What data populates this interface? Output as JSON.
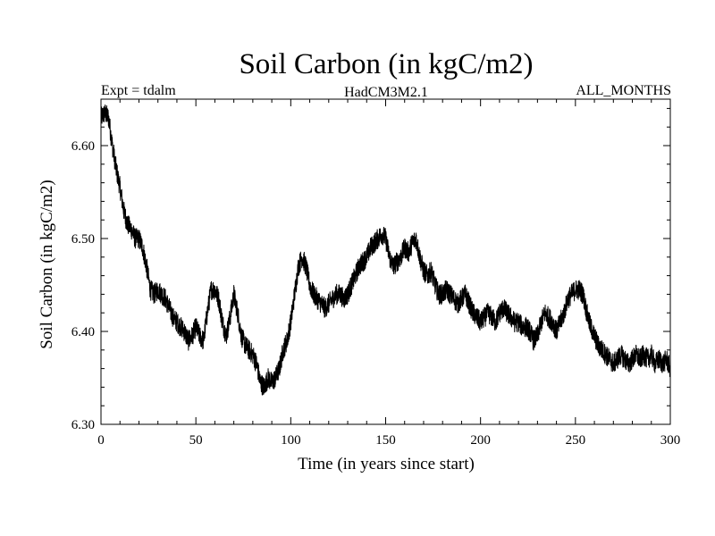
{
  "chart_data": {
    "type": "line",
    "title": "Soil Carbon (in kgC/m2)",
    "subtitle_left": "Expt = tdalm",
    "subtitle_center": "HadCM3M2.1",
    "subtitle_right": "ALL_MONTHS",
    "xlabel": "Time (in years since start)",
    "ylabel": "Soil Carbon (in kgC/m2)",
    "xlim": [
      0,
      300
    ],
    "ylim": [
      6.3,
      6.65
    ],
    "x_ticks": [
      0,
      50,
      100,
      150,
      200,
      250,
      300
    ],
    "x_tick_labels": [
      "0",
      "50",
      "100",
      "150",
      "200",
      "250",
      "300"
    ],
    "y_ticks": [
      6.3,
      6.4,
      6.5,
      6.6
    ],
    "y_tick_labels": [
      "6.30",
      "6.40",
      "6.50",
      "6.60"
    ],
    "grid": false,
    "series": [
      {
        "name": "Soil Carbon",
        "color": "#000000",
        "x": [
          0,
          2,
          4,
          6,
          8,
          10,
          12,
          14,
          16,
          18,
          20,
          22,
          24,
          26,
          28,
          30,
          32,
          34,
          36,
          38,
          40,
          42,
          44,
          46,
          48,
          50,
          52,
          54,
          56,
          58,
          60,
          62,
          64,
          66,
          68,
          70,
          72,
          74,
          76,
          78,
          80,
          82,
          84,
          86,
          88,
          90,
          92,
          94,
          96,
          98,
          100,
          102,
          104,
          106,
          108,
          110,
          112,
          114,
          116,
          118,
          120,
          122,
          124,
          126,
          128,
          130,
          132,
          134,
          136,
          138,
          140,
          142,
          144,
          146,
          148,
          150,
          152,
          154,
          156,
          158,
          160,
          162,
          164,
          166,
          168,
          170,
          172,
          174,
          176,
          178,
          180,
          182,
          184,
          186,
          188,
          190,
          192,
          194,
          196,
          198,
          200,
          202,
          204,
          206,
          208,
          210,
          212,
          214,
          216,
          218,
          220,
          222,
          224,
          226,
          228,
          230,
          232,
          234,
          236,
          238,
          240,
          242,
          244,
          246,
          248,
          250,
          252,
          254,
          256,
          258,
          260,
          262,
          264,
          266,
          268,
          270,
          272,
          274,
          276,
          278,
          280,
          282,
          284,
          286,
          288,
          290,
          292,
          294,
          296,
          298,
          300
        ],
        "values": [
          6.63,
          6.635,
          6.63,
          6.6,
          6.575,
          6.555,
          6.53,
          6.515,
          6.51,
          6.5,
          6.5,
          6.49,
          6.47,
          6.445,
          6.44,
          6.445,
          6.44,
          6.435,
          6.425,
          6.415,
          6.41,
          6.405,
          6.4,
          6.39,
          6.395,
          6.405,
          6.395,
          6.39,
          6.42,
          6.445,
          6.445,
          6.435,
          6.41,
          6.395,
          6.415,
          6.44,
          6.42,
          6.395,
          6.385,
          6.38,
          6.375,
          6.365,
          6.345,
          6.34,
          6.35,
          6.345,
          6.35,
          6.36,
          6.38,
          6.39,
          6.41,
          6.44,
          6.47,
          6.48,
          6.47,
          6.45,
          6.44,
          6.435,
          6.43,
          6.425,
          6.43,
          6.435,
          6.44,
          6.44,
          6.435,
          6.44,
          6.45,
          6.46,
          6.47,
          6.475,
          6.48,
          6.49,
          6.495,
          6.5,
          6.505,
          6.5,
          6.48,
          6.47,
          6.475,
          6.48,
          6.49,
          6.485,
          6.495,
          6.5,
          6.48,
          6.465,
          6.46,
          6.465,
          6.45,
          6.44,
          6.44,
          6.445,
          6.44,
          6.435,
          6.43,
          6.435,
          6.44,
          6.43,
          6.42,
          6.415,
          6.41,
          6.415,
          6.42,
          6.415,
          6.41,
          6.42,
          6.425,
          6.42,
          6.415,
          6.41,
          6.41,
          6.405,
          6.405,
          6.4,
          6.39,
          6.395,
          6.41,
          6.42,
          6.415,
          6.41,
          6.4,
          6.41,
          6.42,
          6.435,
          6.44,
          6.445,
          6.445,
          6.44,
          6.42,
          6.405,
          6.395,
          6.385,
          6.38,
          6.375,
          6.37,
          6.365,
          6.37,
          6.375,
          6.37,
          6.365,
          6.37,
          6.375,
          6.37,
          6.375,
          6.37,
          6.375,
          6.365,
          6.37,
          6.365,
          6.37,
          6.36
        ]
      }
    ]
  }
}
